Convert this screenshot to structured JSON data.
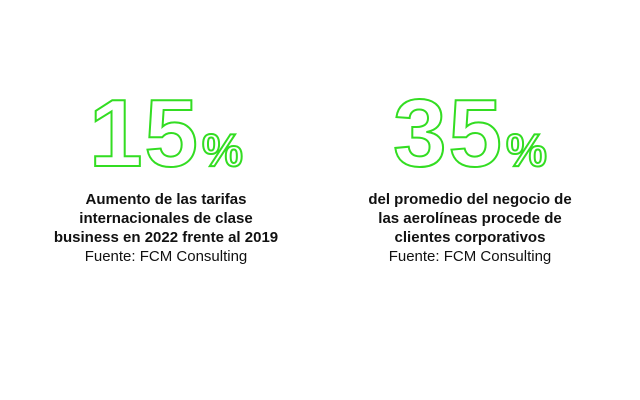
{
  "colors": {
    "accent": "#33dd22",
    "text": "#111111",
    "background": "#ffffff"
  },
  "stats": [
    {
      "number": "15",
      "percent_sign": "%",
      "caption_lines": [
        "Aumento de las tarifas",
        "internacionales de clase",
        "business en 2022 frente al 2019"
      ],
      "source": "Fuente: FCM Consulting"
    },
    {
      "number": "35",
      "percent_sign": "%",
      "caption_lines": [
        "del promedio del negocio de",
        "las aerolíneas procede de",
        "clientes corporativos"
      ],
      "source": "Fuente: FCM Consulting"
    }
  ]
}
